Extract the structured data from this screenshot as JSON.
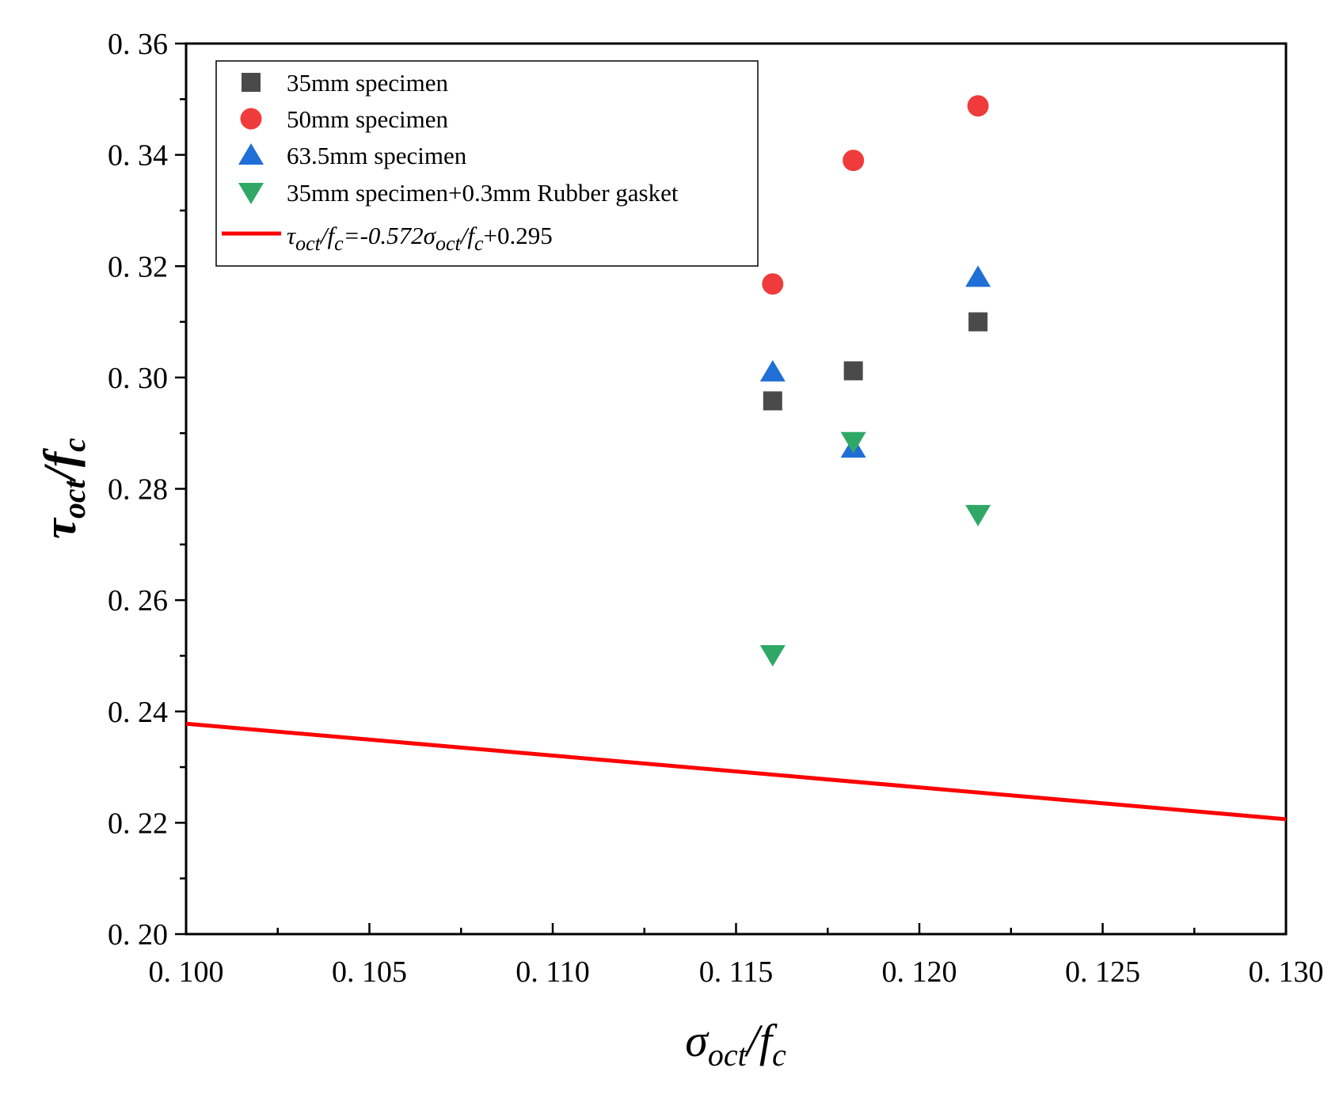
{
  "chart_data": {
    "type": "scatter",
    "xlabel": {
      "main": "σ",
      "sub": "oct",
      "sep": "/",
      "main2": "f",
      "sub2": "c"
    },
    "ylabel": {
      "main": "τ",
      "sub": "oct",
      "sep": "/",
      "main2": "f",
      "sub2": "c"
    },
    "xlim": [
      0.1,
      0.13
    ],
    "ylim": [
      0.2,
      0.36
    ],
    "xticks": [
      "0. 100",
      "0. 105",
      "0. 110",
      "0. 115",
      "0. 120",
      "0. 125",
      "0. 130"
    ],
    "yticks": [
      "0. 20",
      "0. 22",
      "0. 24",
      "0. 26",
      "0. 28",
      "0. 30",
      "0. 32",
      "0. 34",
      "0. 36"
    ],
    "xtick_values": [
      0.1,
      0.105,
      0.11,
      0.115,
      0.12,
      0.125,
      0.13
    ],
    "ytick_values": [
      0.2,
      0.22,
      0.24,
      0.26,
      0.28,
      0.3,
      0.32,
      0.34,
      0.36
    ],
    "legend_position": "top-left",
    "series": [
      {
        "name": "35mm specimen",
        "marker": "square",
        "color": "#4a4a4a",
        "x": [
          0.116,
          0.1182,
          0.1216
        ],
        "y": [
          0.2958,
          0.3012,
          0.31
        ]
      },
      {
        "name": "50mm specimen",
        "marker": "circle",
        "color": "#ef3b3b",
        "x": [
          0.116,
          0.1182,
          0.1216
        ],
        "y": [
          0.3168,
          0.339,
          0.3488
        ]
      },
      {
        "name": "63.5mm specimen",
        "marker": "triangle-up",
        "color": "#1f6fd6",
        "x": [
          0.116,
          0.1182,
          0.1216
        ],
        "y": [
          0.301,
          0.2873,
          0.318
        ]
      },
      {
        "name": "35mm specimen+0.3mm Rubber gasket",
        "marker": "triangle-down",
        "color": "#2fa866",
        "x": [
          0.116,
          0.1182,
          0.1216
        ],
        "y": [
          0.2502,
          0.2885,
          0.2754
        ]
      }
    ],
    "fit_line": {
      "color": "#ff0000",
      "slope": -0.572,
      "intercept": 0.295,
      "legend_parts": [
        {
          "text": "τ",
          "style": "italic"
        },
        {
          "text": "oct",
          "style": "italic-sub"
        },
        {
          "text": "/",
          "style": "italic"
        },
        {
          "text": "f",
          "style": "italic"
        },
        {
          "text": "c",
          "style": "italic-sub"
        },
        {
          "text": "=-0.572",
          "style": "italic"
        },
        {
          "text": "σ",
          "style": "italic"
        },
        {
          "text": "oct",
          "style": "italic-sub"
        },
        {
          "text": "/",
          "style": "italic"
        },
        {
          "text": "f",
          "style": "italic"
        },
        {
          "text": "c",
          "style": "italic-sub"
        },
        {
          "text": "+0.295",
          "style": "normal"
        }
      ]
    }
  }
}
